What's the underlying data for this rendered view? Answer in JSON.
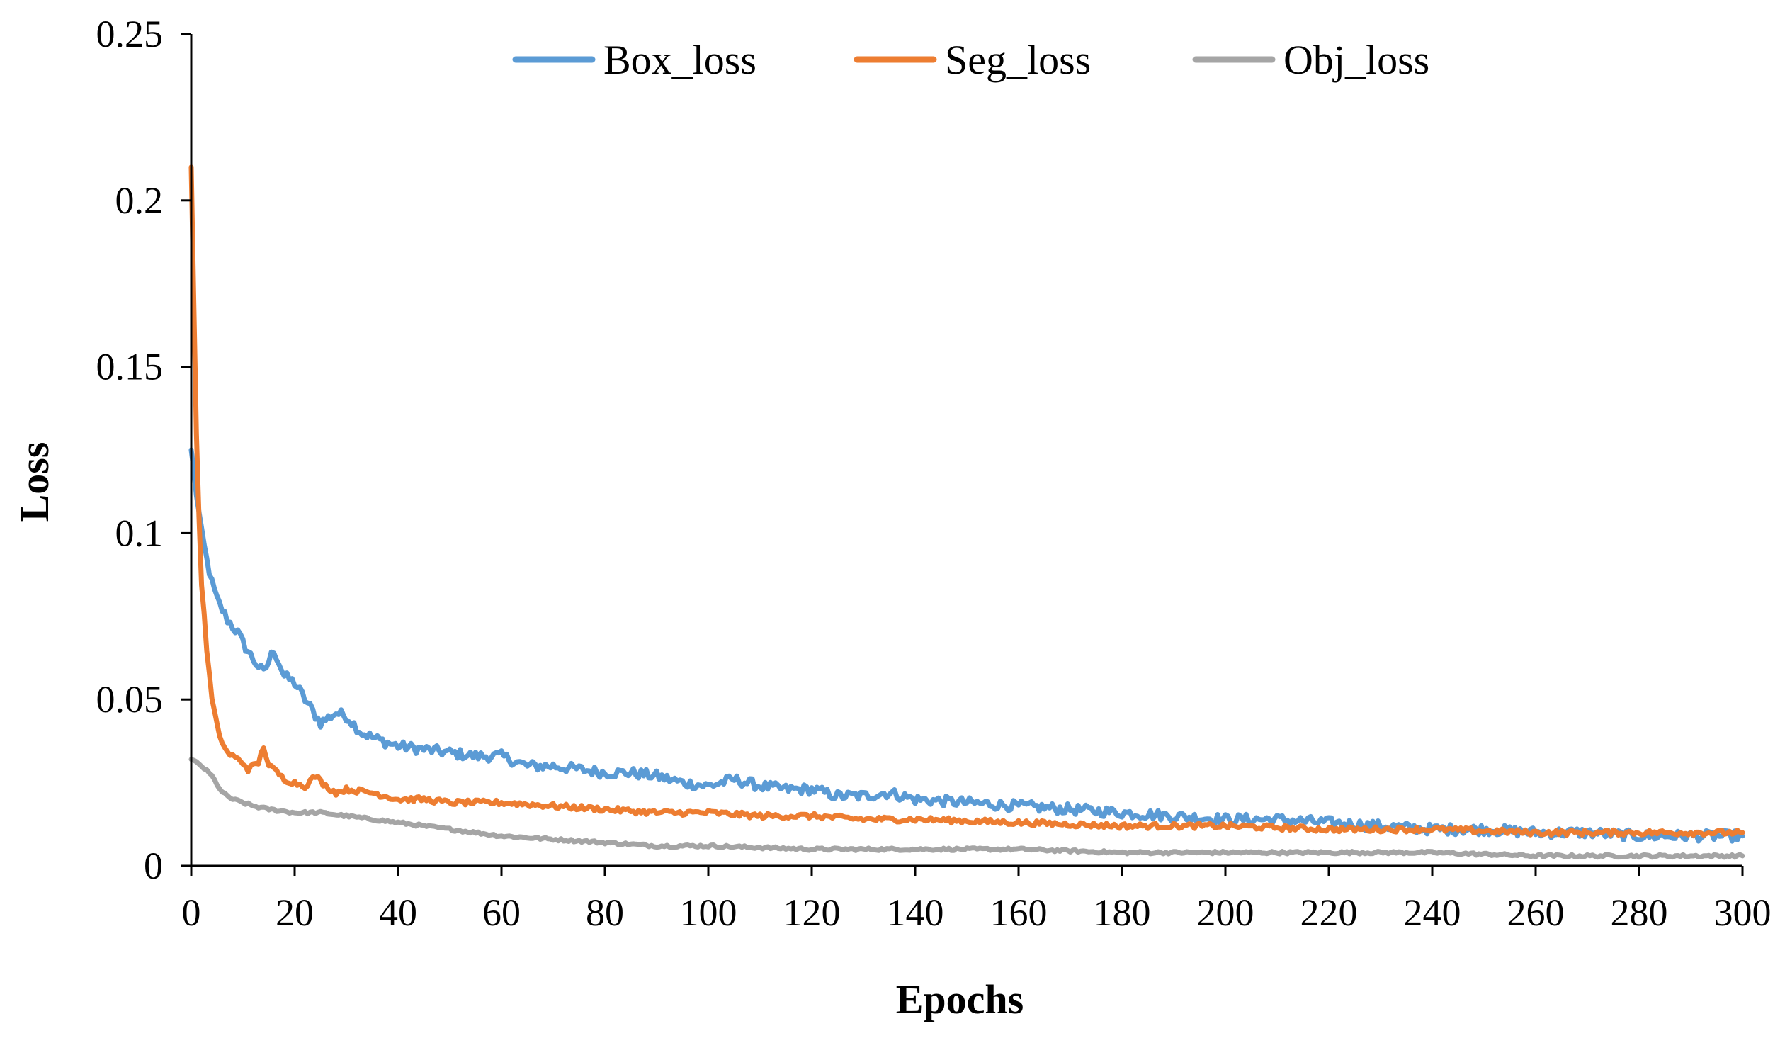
{
  "chart_data": {
    "type": "line",
    "title": "",
    "xlabel": "Epochs",
    "ylabel": "Loss",
    "xlim": [
      0,
      300
    ],
    "ylim": [
      0,
      0.25
    ],
    "xticks": [
      0,
      20,
      40,
      60,
      80,
      100,
      120,
      140,
      160,
      180,
      200,
      220,
      240,
      260,
      280,
      300
    ],
    "yticks": [
      0,
      0.05,
      0.1,
      0.15,
      0.2,
      0.25
    ],
    "ytick_labels": [
      "0",
      "0.05",
      "0.1",
      "0.15",
      "0.2",
      "0.25"
    ],
    "grid": false,
    "legend_position": "top",
    "series": [
      {
        "name": "Box_loss",
        "color": "#5B9BD5",
        "x": [
          0,
          1,
          2,
          3,
          4,
          5,
          6,
          7,
          8,
          9,
          10,
          12,
          14,
          16,
          18,
          20,
          22,
          25,
          28,
          30,
          33,
          36,
          40,
          45,
          50,
          55,
          60,
          65,
          70,
          75,
          80,
          85,
          90,
          95,
          100,
          105,
          110,
          115,
          120,
          125,
          130,
          135,
          140,
          150,
          160,
          170,
          180,
          190,
          200,
          210,
          220,
          230,
          240,
          250,
          260,
          270,
          280,
          290,
          300
        ],
        "y": [
          0.125,
          0.112,
          0.1,
          0.092,
          0.085,
          0.08,
          0.077,
          0.074,
          0.072,
          0.07,
          0.067,
          0.062,
          0.058,
          0.065,
          0.057,
          0.055,
          0.05,
          0.043,
          0.046,
          0.045,
          0.04,
          0.038,
          0.036,
          0.035,
          0.034,
          0.033,
          0.033,
          0.03,
          0.03,
          0.029,
          0.028,
          0.028,
          0.027,
          0.025,
          0.024,
          0.026,
          0.024,
          0.023,
          0.023,
          0.021,
          0.021,
          0.022,
          0.02,
          0.019,
          0.018,
          0.017,
          0.016,
          0.015,
          0.014,
          0.014,
          0.013,
          0.012,
          0.011,
          0.011,
          0.01,
          0.01,
          0.009,
          0.009,
          0.009
        ],
        "noise": 0.0016
      },
      {
        "name": "Seg_loss",
        "color": "#ED7D31",
        "x": [
          0,
          0.5,
          1,
          1.5,
          2,
          3,
          4,
          5,
          6,
          7,
          8,
          9,
          10,
          11,
          12,
          13,
          14,
          15,
          16,
          18,
          20,
          22,
          24,
          26,
          28,
          30,
          35,
          40,
          45,
          50,
          55,
          60,
          70,
          80,
          90,
          100,
          110,
          120,
          130,
          140,
          160,
          180,
          200,
          220,
          240,
          260,
          280,
          300
        ],
        "y": [
          0.21,
          0.17,
          0.13,
          0.105,
          0.085,
          0.065,
          0.05,
          0.042,
          0.037,
          0.034,
          0.033,
          0.032,
          0.031,
          0.029,
          0.03,
          0.031,
          0.036,
          0.03,
          0.029,
          0.026,
          0.025,
          0.024,
          0.027,
          0.024,
          0.022,
          0.023,
          0.022,
          0.02,
          0.02,
          0.019,
          0.019,
          0.019,
          0.018,
          0.017,
          0.016,
          0.016,
          0.015,
          0.015,
          0.014,
          0.014,
          0.013,
          0.012,
          0.012,
          0.011,
          0.011,
          0.01,
          0.01,
          0.01
        ],
        "noise": 0.0008
      },
      {
        "name": "Obj_loss",
        "color": "#A5A5A5",
        "x": [
          0,
          2,
          4,
          6,
          8,
          10,
          12,
          15,
          20,
          25,
          30,
          35,
          40,
          45,
          50,
          55,
          60,
          70,
          80,
          90,
          100,
          120,
          140,
          160,
          180,
          200,
          220,
          240,
          260,
          280,
          300
        ],
        "y": [
          0.032,
          0.03,
          0.027,
          0.022,
          0.02,
          0.019,
          0.018,
          0.017,
          0.016,
          0.016,
          0.015,
          0.014,
          0.013,
          0.012,
          0.011,
          0.01,
          0.009,
          0.008,
          0.007,
          0.006,
          0.006,
          0.005,
          0.005,
          0.005,
          0.004,
          0.004,
          0.004,
          0.004,
          0.003,
          0.003,
          0.003
        ],
        "noise": 0.0004
      }
    ]
  }
}
